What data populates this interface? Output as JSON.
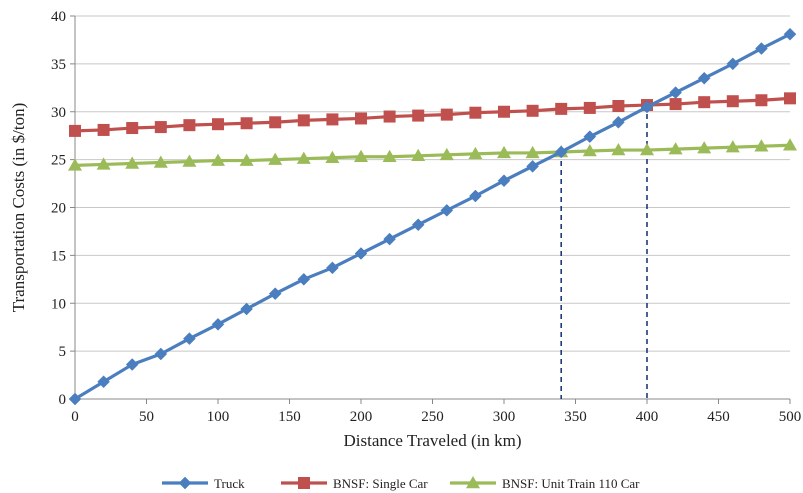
{
  "chart_data": {
    "type": "line",
    "xlabel": "Distance Traveled (in km)",
    "ylabel": "Transportation Costs (in $/ton)",
    "xlim": [
      0,
      500
    ],
    "ylim": [
      0,
      40
    ],
    "x_ticks": [
      0,
      50,
      100,
      150,
      200,
      250,
      300,
      350,
      400,
      450,
      500
    ],
    "y_ticks": [
      0,
      5,
      10,
      15,
      20,
      25,
      30,
      35,
      40
    ],
    "grid": "horizontal",
    "legend_position": "bottom",
    "x": [
      0,
      20,
      40,
      60,
      80,
      100,
      120,
      140,
      160,
      180,
      200,
      220,
      240,
      260,
      280,
      300,
      320,
      340,
      360,
      380,
      400,
      420,
      440,
      460,
      480,
      500
    ],
    "series": [
      {
        "name": "Truck",
        "color": "#4a7ebf",
        "marker": "diamond",
        "values": [
          0,
          1.8,
          3.6,
          4.7,
          6.3,
          7.8,
          9.4,
          11.0,
          12.5,
          13.7,
          15.2,
          16.7,
          18.2,
          19.7,
          21.2,
          22.8,
          24.3,
          25.8,
          27.4,
          28.9,
          30.5,
          32.0,
          33.5,
          35.0,
          36.6,
          38.1
        ]
      },
      {
        "name": "BNSF: Single Car",
        "color": "#c0504d",
        "marker": "square",
        "values": [
          28.0,
          28.1,
          28.3,
          28.4,
          28.6,
          28.7,
          28.8,
          28.9,
          29.1,
          29.2,
          29.3,
          29.5,
          29.6,
          29.7,
          29.9,
          30.0,
          30.1,
          30.3,
          30.4,
          30.6,
          30.7,
          30.8,
          31.0,
          31.1,
          31.2,
          31.4
        ]
      },
      {
        "name": "BNSF: Unit Train 110 Car",
        "color": "#9bbb59",
        "marker": "triangle",
        "values": [
          24.4,
          24.5,
          24.6,
          24.7,
          24.8,
          24.9,
          24.9,
          25.0,
          25.1,
          25.2,
          25.3,
          25.3,
          25.4,
          25.5,
          25.6,
          25.7,
          25.7,
          25.8,
          25.9,
          26.0,
          26.0,
          26.1,
          26.2,
          26.3,
          26.4,
          26.5
        ]
      }
    ],
    "reference_lines": [
      {
        "x": 340,
        "y": 25.8,
        "style": "dashed",
        "color": "#1f3a7a"
      },
      {
        "x": 400,
        "y": 30.7,
        "style": "dashed",
        "color": "#1f3a7a"
      }
    ]
  }
}
